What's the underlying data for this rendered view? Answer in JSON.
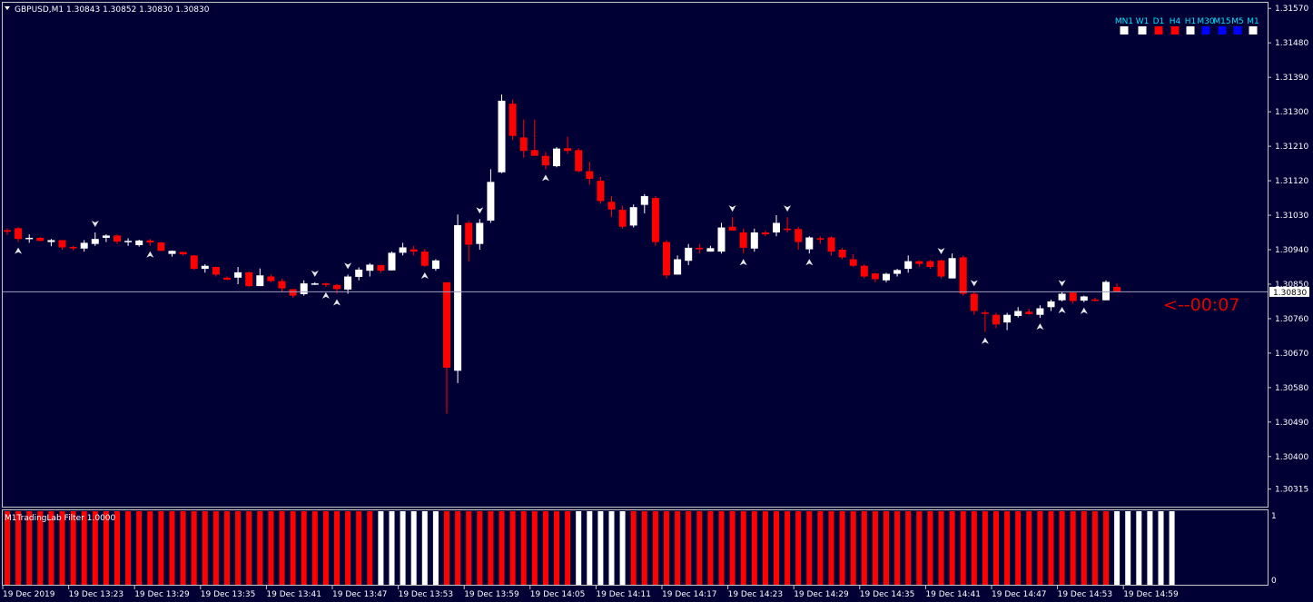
{
  "symbol_header": "GBPUSD,M1  1.30843 1.30852 1.30830 1.30830",
  "timer": "<--00:07",
  "current_price": "1.30830",
  "indicator_label": "M1TradingLab Filter 1.0000",
  "indicator_scale": [
    "1",
    "0"
  ],
  "colors": {
    "background": "#000035",
    "bull": "#ffffff",
    "bear": "#ff0000",
    "border": "#c8c8c8",
    "tf_label": "#00e5ff",
    "tf_blue": "#0000ff"
  },
  "timeframes": [
    {
      "label": "MN1",
      "color": "#ffffff"
    },
    {
      "label": "W1",
      "color": "#ffffff"
    },
    {
      "label": "D1",
      "color": "#ff0000"
    },
    {
      "label": "H4",
      "color": "#ff0000"
    },
    {
      "label": "H1",
      "color": "#ffffff"
    },
    {
      "label": "M30",
      "color": "#0000ff"
    },
    {
      "label": "M15",
      "color": "#0000ff"
    },
    {
      "label": "M5",
      "color": "#0000ff"
    },
    {
      "label": "M1",
      "color": "#ffffff"
    }
  ],
  "chart_data": {
    "type": "candlestick",
    "symbol": "GBPUSD",
    "timeframe": "M1",
    "y_ticks": [
      "1.31570",
      "1.31480",
      "1.31390",
      "1.31300",
      "1.31210",
      "1.31120",
      "1.31030",
      "1.30940",
      "1.30850",
      "1.30760",
      "1.30670",
      "1.30580",
      "1.30490",
      "1.30400",
      "1.30315"
    ],
    "x_ticks": [
      "19 Dec 2019",
      "19 Dec 13:23",
      "19 Dec 13:29",
      "19 Dec 13:35",
      "19 Dec 13:41",
      "19 Dec 13:47",
      "19 Dec 13:53",
      "19 Dec 13:59",
      "19 Dec 14:05",
      "19 Dec 14:11",
      "19 Dec 14:17",
      "19 Dec 14:23",
      "19 Dec 14:29",
      "19 Dec 14:35",
      "19 Dec 14:41",
      "19 Dec 14:47",
      "19 Dec 14:53",
      "19 Dec 14:59"
    ],
    "ylim": [
      1.303,
      1.3158
    ],
    "candles": [
      [
        1.30991,
        1.30996,
        1.30978,
        1.30987
      ],
      [
        1.30996,
        1.30999,
        1.3096,
        1.30968
      ],
      [
        1.30968,
        1.3098,
        1.30958,
        1.30971
      ],
      [
        1.30971,
        1.30973,
        1.30962,
        1.30963
      ],
      [
        1.3096,
        1.30968,
        1.30949,
        1.30965
      ],
      [
        1.30965,
        1.30965,
        1.3094,
        1.30946
      ],
      [
        1.30947,
        1.3095,
        1.30938,
        1.30945
      ],
      [
        1.30943,
        1.30965,
        1.30935,
        1.30958
      ],
      [
        1.30955,
        1.30985,
        1.3095,
        1.30968
      ],
      [
        1.30971,
        1.3098,
        1.3096,
        1.30977
      ],
      [
        1.30977,
        1.3098,
        1.30955,
        1.30961
      ],
      [
        1.3096,
        1.3097,
        1.3095,
        1.30963
      ],
      [
        1.30952,
        1.30966,
        1.30948,
        1.30964
      ],
      [
        1.30964,
        1.30968,
        1.3095,
        1.30959
      ],
      [
        1.30959,
        1.3096,
        1.30936,
        1.30937
      ],
      [
        1.30929,
        1.30938,
        1.30922,
        1.30937
      ],
      [
        1.30934,
        1.30935,
        1.30925,
        1.30928
      ],
      [
        1.30925,
        1.30926,
        1.30888,
        1.3089
      ],
      [
        1.3089,
        1.30902,
        1.3088,
        1.30898
      ],
      [
        1.30895,
        1.30896,
        1.3087,
        1.30875
      ],
      [
        1.30867,
        1.3087,
        1.3086,
        1.30862
      ],
      [
        1.30867,
        1.30895,
        1.3085,
        1.30881
      ],
      [
        1.30881,
        1.30883,
        1.30843,
        1.30845
      ],
      [
        1.30845,
        1.30891,
        1.30845,
        1.30873
      ],
      [
        1.3087,
        1.30875,
        1.30855,
        1.30858
      ],
      [
        1.30858,
        1.30864,
        1.3083,
        1.30839
      ],
      [
        1.30837,
        1.30837,
        1.30815,
        1.3082
      ],
      [
        1.30824,
        1.3086,
        1.3082,
        1.30852
      ],
      [
        1.30851,
        1.30855,
        1.30848,
        1.30852
      ],
      [
        1.30852,
        1.30854,
        1.30843,
        1.30848
      ],
      [
        1.30848,
        1.3085,
        1.30825,
        1.30837
      ],
      [
        1.30836,
        1.30875,
        1.30825,
        1.3087
      ],
      [
        1.30869,
        1.30894,
        1.3086,
        1.30888
      ],
      [
        1.30885,
        1.30905,
        1.3087,
        1.30901
      ],
      [
        1.309,
        1.309,
        1.3088,
        1.30885
      ],
      [
        1.30886,
        1.30935,
        1.30886,
        1.30932
      ],
      [
        1.30932,
        1.30958,
        1.30925,
        1.30946
      ],
      [
        1.30941,
        1.3095,
        1.30925,
        1.30935
      ],
      [
        1.30935,
        1.30942,
        1.30895,
        1.30898
      ],
      [
        1.3089,
        1.30915,
        1.30885,
        1.30912
      ],
      [
        1.30855,
        1.30855,
        1.30512,
        1.30632
      ],
      [
        1.30624,
        1.31032,
        1.30592,
        1.31004
      ],
      [
        1.3101,
        1.31015,
        1.30909,
        1.30953
      ],
      [
        1.30955,
        1.3102,
        1.3094,
        1.3101
      ],
      [
        1.31016,
        1.3115,
        1.3101,
        1.31117
      ],
      [
        1.31142,
        1.31345,
        1.3114,
        1.31329
      ],
      [
        1.31321,
        1.31332,
        1.31226,
        1.31237
      ],
      [
        1.31233,
        1.3128,
        1.3118,
        1.31198
      ],
      [
        1.312,
        1.3128,
        1.31185,
        1.31185
      ],
      [
        1.31185,
        1.31195,
        1.3115,
        1.3116
      ],
      [
        1.31158,
        1.31208,
        1.31155,
        1.31204
      ],
      [
        1.31205,
        1.31235,
        1.3119,
        1.31198
      ],
      [
        1.312,
        1.31205,
        1.31142,
        1.31145
      ],
      [
        1.31145,
        1.3117,
        1.3111,
        1.31125
      ],
      [
        1.3112,
        1.3113,
        1.3106,
        1.31067
      ],
      [
        1.31065,
        1.3108,
        1.31025,
        1.31045
      ],
      [
        1.31044,
        1.31055,
        1.30995,
        1.31
      ],
      [
        1.31003,
        1.31058,
        1.30998,
        1.31051
      ],
      [
        1.31057,
        1.31085,
        1.31035,
        1.3108
      ],
      [
        1.31075,
        1.3108,
        1.3095,
        1.3096
      ],
      [
        1.3096,
        1.30965,
        1.30865,
        1.30873
      ],
      [
        1.30875,
        1.30925,
        1.30875,
        1.30915
      ],
      [
        1.30911,
        1.30955,
        1.309,
        1.30945
      ],
      [
        1.30945,
        1.30955,
        1.3093,
        1.30941
      ],
      [
        1.30935,
        1.3095,
        1.30935,
        1.30944
      ],
      [
        1.30935,
        1.3101,
        1.3093,
        1.30998
      ],
      [
        1.31,
        1.31025,
        1.3099,
        1.3099
      ],
      [
        1.30985,
        1.30995,
        1.3093,
        1.30945
      ],
      [
        1.30943,
        1.30995,
        1.30935,
        1.30985
      ],
      [
        1.30985,
        1.3099,
        1.30975,
        1.3098
      ],
      [
        1.30985,
        1.3103,
        1.30975,
        1.3101
      ],
      [
        1.30995,
        1.31025,
        1.30985,
        1.30992
      ],
      [
        1.30994,
        1.31,
        1.3094,
        1.3096
      ],
      [
        1.30941,
        1.30975,
        1.3093,
        1.30972
      ],
      [
        1.3097,
        1.30975,
        1.30955,
        1.30968
      ],
      [
        1.30972,
        1.30975,
        1.30925,
        1.30935
      ],
      [
        1.3094,
        1.30945,
        1.30915,
        1.3092
      ],
      [
        1.30915,
        1.30928,
        1.30895,
        1.30898
      ],
      [
        1.30898,
        1.30902,
        1.30865,
        1.3087
      ],
      [
        1.30878,
        1.3088,
        1.30855,
        1.30863
      ],
      [
        1.3086,
        1.3088,
        1.30855,
        1.30877
      ],
      [
        1.30877,
        1.3089,
        1.3087,
        1.30887
      ],
      [
        1.3089,
        1.30925,
        1.3088,
        1.3091
      ],
      [
        1.3091,
        1.30912,
        1.30895,
        1.30903
      ],
      [
        1.3091,
        1.30913,
        1.3089,
        1.30895
      ],
      [
        1.30912,
        1.30914,
        1.30865,
        1.3087
      ],
      [
        1.30865,
        1.3093,
        1.30865,
        1.30918
      ],
      [
        1.3092,
        1.30925,
        1.3082,
        1.30825
      ],
      [
        1.30825,
        1.3083,
        1.3077,
        1.3078
      ],
      [
        1.30776,
        1.30782,
        1.30725,
        1.30775
      ],
      [
        1.3077,
        1.30775,
        1.30735,
        1.30745
      ],
      [
        1.3075,
        1.30775,
        1.3073,
        1.3077
      ],
      [
        1.30767,
        1.3079,
        1.30763,
        1.3078
      ],
      [
        1.30778,
        1.30785,
        1.3077,
        1.30772
      ],
      [
        1.3077,
        1.30795,
        1.30762,
        1.30787
      ],
      [
        1.3079,
        1.3081,
        1.3078,
        1.30805
      ],
      [
        1.30808,
        1.3083,
        1.30805,
        1.30825
      ],
      [
        1.30828,
        1.3083,
        1.308,
        1.30806
      ],
      [
        1.30807,
        1.3082,
        1.30803,
        1.30818
      ],
      [
        1.3081,
        1.30815,
        1.30805,
        1.30807
      ],
      [
        1.30808,
        1.3086,
        1.30808,
        1.30856
      ],
      [
        1.30843,
        1.30852,
        1.3083,
        1.3083
      ]
    ],
    "arrows_up": [
      1,
      13,
      29,
      30,
      38,
      49,
      67,
      73,
      89,
      94,
      96,
      98
    ],
    "arrows_down": [
      8,
      28,
      31,
      43,
      66,
      71,
      85,
      88,
      96
    ]
  },
  "indicator_data": {
    "bar_colors": "RRRRRRRRRRRRRRRRRRRRRRRRRRRRRRRRRRWWWWWWRRRRRRRRRRRRWWWWWRRRRRRRRRRRRRRRRRRRRRRRRRRRRRRRRRRRRRRRRRRRRWWWWWW"
  }
}
